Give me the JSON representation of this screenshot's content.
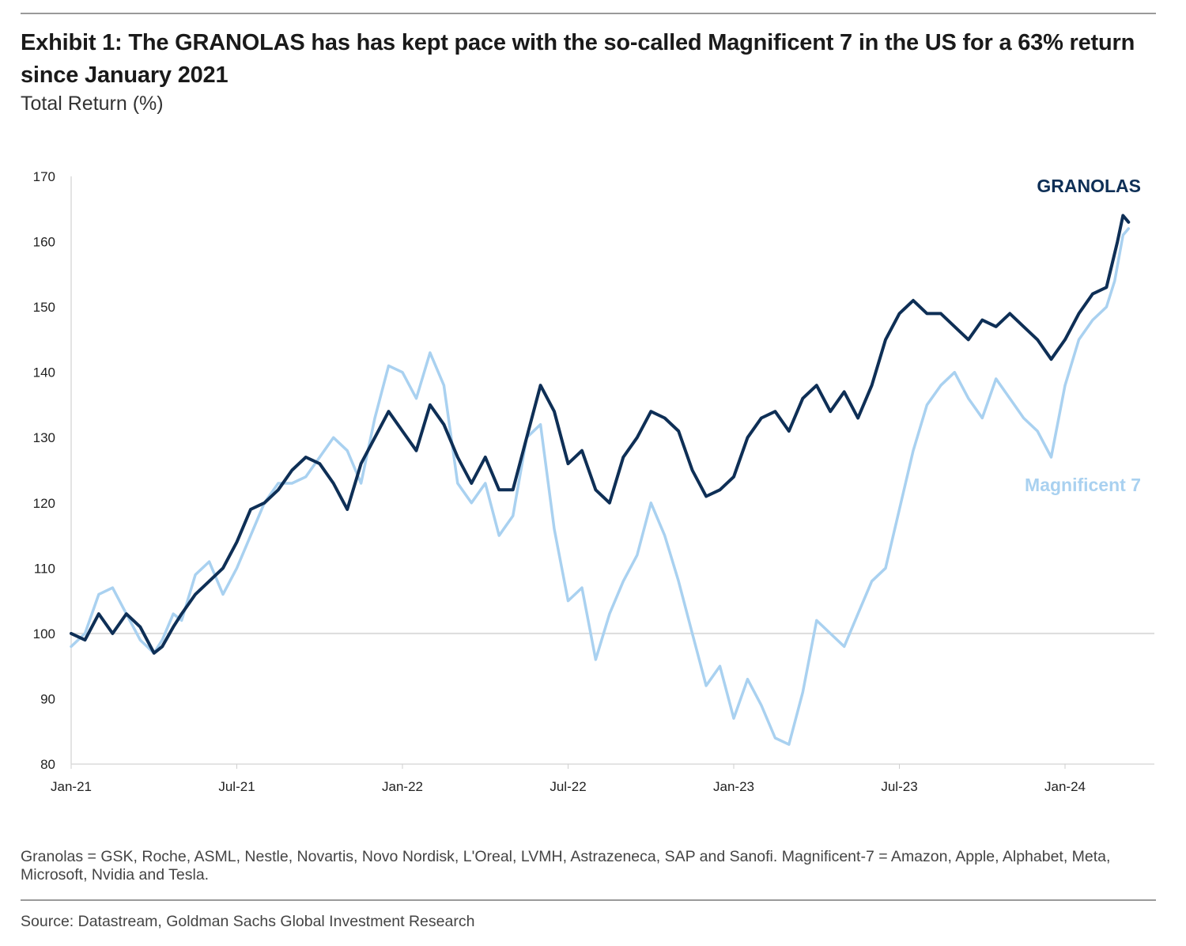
{
  "title": "Exhibit 1: The GRANOLAS has has kept pace with the so-called Magnificent 7 in the US for a 63% return since January 2021",
  "subtitle": "Total Return (%)",
  "footnote": "Granolas = GSK, Roche, ASML, Nestle, Novartis, Novo Nordisk, L'Oreal, LVMH, Astrazeneca, SAP and Sanofi. Magnificent-7 = Amazon, Apple, Alphabet, Meta, Microsoft, Nvidia and Tesla.",
  "source": "Source: Datastream, Goldman Sachs Global Investment Research",
  "chart_data": {
    "type": "line",
    "title": "Total Return (%)",
    "xlabel": "",
    "ylabel": "",
    "ylim": [
      80,
      170
    ],
    "yticks": [
      80,
      90,
      100,
      110,
      120,
      130,
      140,
      150,
      160,
      170
    ],
    "xlim": [
      0,
      39
    ],
    "xtick_positions": [
      0,
      6,
      12,
      18,
      24,
      30,
      36
    ],
    "xtick_labels": [
      "Jan-21",
      "Jul-21",
      "Jan-22",
      "Jul-22",
      "Jan-23",
      "Jul-23",
      "Jan-24"
    ],
    "reference_line": 100,
    "x_unit": "months since Jan-21",
    "series": [
      {
        "name": "GRANOLAS",
        "color": "#0e2f56",
        "points": [
          [
            0,
            100
          ],
          [
            0.5,
            99
          ],
          [
            1,
            103
          ],
          [
            1.5,
            100
          ],
          [
            2,
            103
          ],
          [
            2.5,
            101
          ],
          [
            3,
            97
          ],
          [
            3.3,
            98
          ],
          [
            3.7,
            101
          ],
          [
            4,
            103
          ],
          [
            4.5,
            106
          ],
          [
            5,
            108
          ],
          [
            5.5,
            110
          ],
          [
            6,
            114
          ],
          [
            6.5,
            119
          ],
          [
            7,
            120
          ],
          [
            7.5,
            122
          ],
          [
            8,
            125
          ],
          [
            8.5,
            127
          ],
          [
            9,
            126
          ],
          [
            9.5,
            123
          ],
          [
            10,
            119
          ],
          [
            10.5,
            126
          ],
          [
            11,
            130
          ],
          [
            11.5,
            134
          ],
          [
            12,
            131
          ],
          [
            12.5,
            128
          ],
          [
            13,
            135
          ],
          [
            13.5,
            132
          ],
          [
            14,
            127
          ],
          [
            14.5,
            123
          ],
          [
            15,
            127
          ],
          [
            15.5,
            122
          ],
          [
            16,
            122
          ],
          [
            16.5,
            130
          ],
          [
            17,
            138
          ],
          [
            17.5,
            134
          ],
          [
            18,
            126
          ],
          [
            18.5,
            128
          ],
          [
            19,
            122
          ],
          [
            19.5,
            120
          ],
          [
            20,
            127
          ],
          [
            20.5,
            130
          ],
          [
            21,
            134
          ],
          [
            21.5,
            133
          ],
          [
            22,
            131
          ],
          [
            22.5,
            125
          ],
          [
            23,
            121
          ],
          [
            23.5,
            122
          ],
          [
            24,
            124
          ],
          [
            24.5,
            130
          ],
          [
            25,
            133
          ],
          [
            25.5,
            134
          ],
          [
            26,
            131
          ],
          [
            26.5,
            136
          ],
          [
            27,
            138
          ],
          [
            27.5,
            134
          ],
          [
            28,
            137
          ],
          [
            28.5,
            133
          ],
          [
            29,
            138
          ],
          [
            29.5,
            145
          ],
          [
            30,
            149
          ],
          [
            30.5,
            151
          ],
          [
            31,
            149
          ],
          [
            31.5,
            149
          ],
          [
            32,
            147
          ],
          [
            32.5,
            145
          ],
          [
            33,
            148
          ],
          [
            33.5,
            147
          ],
          [
            34,
            149
          ],
          [
            34.5,
            147
          ],
          [
            35,
            145
          ],
          [
            35.5,
            142
          ],
          [
            36,
            145
          ],
          [
            36.5,
            149
          ],
          [
            37,
            152
          ],
          [
            37.5,
            153
          ],
          [
            37.9,
            160
          ],
          [
            38.1,
            164
          ],
          [
            38.3,
            163
          ]
        ]
      },
      {
        "name": "Magnificent 7",
        "color": "#a9d1f0",
        "points": [
          [
            0,
            98
          ],
          [
            0.5,
            100
          ],
          [
            1,
            106
          ],
          [
            1.5,
            107
          ],
          [
            2,
            103
          ],
          [
            2.5,
            99
          ],
          [
            3,
            97
          ],
          [
            3.3,
            99
          ],
          [
            3.7,
            103
          ],
          [
            4,
            102
          ],
          [
            4.5,
            109
          ],
          [
            5,
            111
          ],
          [
            5.5,
            106
          ],
          [
            6,
            110
          ],
          [
            6.5,
            115
          ],
          [
            7,
            120
          ],
          [
            7.5,
            123
          ],
          [
            8,
            123
          ],
          [
            8.5,
            124
          ],
          [
            9,
            127
          ],
          [
            9.5,
            130
          ],
          [
            10,
            128
          ],
          [
            10.5,
            123
          ],
          [
            11,
            133
          ],
          [
            11.5,
            141
          ],
          [
            12,
            140
          ],
          [
            12.5,
            136
          ],
          [
            13,
            143
          ],
          [
            13.5,
            138
          ],
          [
            14,
            123
          ],
          [
            14.5,
            120
          ],
          [
            15,
            123
          ],
          [
            15.5,
            115
          ],
          [
            16,
            118
          ],
          [
            16.5,
            130
          ],
          [
            17,
            132
          ],
          [
            17.5,
            116
          ],
          [
            18,
            105
          ],
          [
            18.5,
            107
          ],
          [
            19,
            96
          ],
          [
            19.5,
            103
          ],
          [
            20,
            108
          ],
          [
            20.5,
            112
          ],
          [
            21,
            120
          ],
          [
            21.5,
            115
          ],
          [
            22,
            108
          ],
          [
            22.5,
            100
          ],
          [
            23,
            92
          ],
          [
            23.5,
            95
          ],
          [
            24,
            87
          ],
          [
            24.5,
            93
          ],
          [
            25,
            89
          ],
          [
            25.5,
            84
          ],
          [
            26,
            83
          ],
          [
            26.5,
            91
          ],
          [
            27,
            102
          ],
          [
            27.5,
            100
          ],
          [
            28,
            98
          ],
          [
            28.5,
            103
          ],
          [
            29,
            108
          ],
          [
            29.5,
            110
          ],
          [
            30,
            119
          ],
          [
            30.5,
            128
          ],
          [
            31,
            135
          ],
          [
            31.5,
            138
          ],
          [
            32,
            140
          ],
          [
            32.5,
            136
          ],
          [
            33,
            133
          ],
          [
            33.5,
            139
          ],
          [
            34,
            136
          ],
          [
            34.5,
            133
          ],
          [
            35,
            131
          ],
          [
            35.5,
            127
          ],
          [
            36,
            138
          ],
          [
            36.5,
            145
          ],
          [
            37,
            148
          ],
          [
            37.5,
            150
          ],
          [
            37.8,
            154
          ],
          [
            38.1,
            161
          ],
          [
            38.3,
            162
          ]
        ]
      }
    ],
    "annotations": [
      {
        "text": "GRANOLAS",
        "color": "#0e2f56",
        "position": "top-right"
      },
      {
        "text": "Magnificent 7",
        "color": "#a9d1f0",
        "position": "right"
      }
    ]
  }
}
